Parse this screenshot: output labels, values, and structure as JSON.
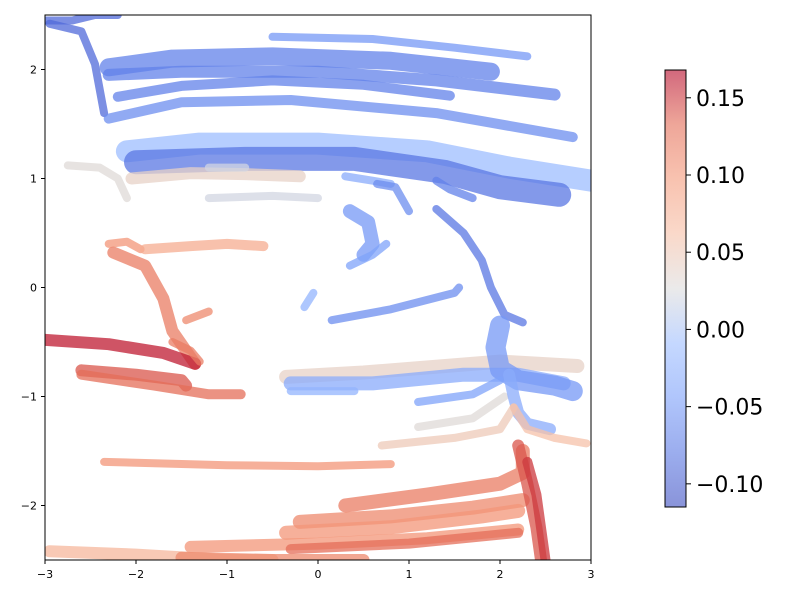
{
  "chart_data": {
    "type": "scatter",
    "title": "",
    "xlabel": "",
    "ylabel": "",
    "xlim": [
      -3,
      3
    ],
    "ylim": [
      -2.5,
      2.5
    ],
    "x_ticks": [
      -3,
      -2,
      -1,
      0,
      1,
      2,
      3
    ],
    "y_ticks": [
      -2,
      -1,
      0,
      1,
      2
    ],
    "x_tick_labels": [
      "−3",
      "−2",
      "−1",
      "0",
      "1",
      "2",
      "3"
    ],
    "y_tick_labels": [
      "−2",
      "−1",
      "0",
      "1",
      "2"
    ],
    "grid": false,
    "colormap": "coolwarm",
    "colorbar": {
      "vmin": -0.115,
      "vmax": 0.168,
      "ticks": [
        0.15,
        0.1,
        0.05,
        0.0,
        -0.05,
        -0.1
      ],
      "tick_labels": [
        "0.15",
        "0.10",
        "0.05",
        "0.00",
        "−0.05",
        "−0.10"
      ]
    },
    "trajectories": [
      {
        "id": "t01",
        "c": -0.09,
        "w": 8,
        "points": [
          [
            -3,
            2.45
          ],
          [
            -2.7,
            2.45
          ],
          [
            -2.45,
            2.5
          ],
          [
            -2.2,
            2.5
          ]
        ]
      },
      {
        "id": "t02",
        "c": -0.09,
        "w": 8,
        "points": [
          [
            -2.95,
            2.42
          ],
          [
            -2.6,
            2.35
          ],
          [
            -2.45,
            2.05
          ],
          [
            -2.35,
            1.6
          ]
        ]
      },
      {
        "id": "t03",
        "c": -0.05,
        "w": 8,
        "points": [
          [
            -0.5,
            2.3
          ],
          [
            0.6,
            2.28
          ],
          [
            1.5,
            2.2
          ],
          [
            2.3,
            2.12
          ]
        ]
      },
      {
        "id": "t04",
        "c": -0.07,
        "w": 18,
        "points": [
          [
            -2.3,
            2.02
          ],
          [
            -1.6,
            2.1
          ],
          [
            -0.5,
            2.12
          ],
          [
            0.8,
            2.08
          ],
          [
            1.9,
            1.98
          ]
        ]
      },
      {
        "id": "t05",
        "c": -0.07,
        "w": 12,
        "points": [
          [
            -2.3,
            1.95
          ],
          [
            -1.5,
            1.98
          ],
          [
            0,
            1.98
          ],
          [
            1.3,
            1.9
          ],
          [
            2.6,
            1.77
          ]
        ]
      },
      {
        "id": "t06",
        "c": -0.07,
        "w": 10,
        "points": [
          [
            -2.2,
            1.75
          ],
          [
            -1.5,
            1.85
          ],
          [
            -0.5,
            1.9
          ],
          [
            0.5,
            1.86
          ],
          [
            1.45,
            1.76
          ]
        ]
      },
      {
        "id": "t07",
        "c": -0.06,
        "w": 10,
        "points": [
          [
            -2.3,
            1.55
          ],
          [
            -1.5,
            1.7
          ],
          [
            -0.3,
            1.72
          ],
          [
            1.3,
            1.6
          ],
          [
            2.8,
            1.38
          ]
        ]
      },
      {
        "id": "t08",
        "c": -0.01,
        "w": 22,
        "points": [
          [
            -2.1,
            1.25
          ],
          [
            -1.3,
            1.32
          ],
          [
            0,
            1.32
          ],
          [
            1.2,
            1.25
          ],
          [
            2.1,
            1.1
          ],
          [
            3,
            0.98
          ]
        ]
      },
      {
        "id": "t09",
        "c": -0.08,
        "w": 24,
        "points": [
          [
            -2.0,
            1.15
          ],
          [
            -0.8,
            1.18
          ],
          [
            0.4,
            1.18
          ],
          [
            1.4,
            1.06
          ],
          [
            2.0,
            0.92
          ],
          [
            2.65,
            0.85
          ]
        ]
      },
      {
        "id": "t10",
        "c": 0.03,
        "w": 8,
        "points": [
          [
            -2.75,
            1.12
          ],
          [
            -2.4,
            1.1
          ],
          [
            -2.2,
            1.0
          ],
          [
            -2.1,
            0.82
          ]
        ]
      },
      {
        "id": "t11",
        "c": 0.04,
        "w": 12,
        "points": [
          [
            -2.05,
            1.0
          ],
          [
            -1.4,
            1.05
          ],
          [
            -0.8,
            1.04
          ],
          [
            -0.2,
            1.02
          ]
        ]
      },
      {
        "id": "t12",
        "c": 0.02,
        "w": 8,
        "points": [
          [
            -1.2,
            1.1
          ],
          [
            -0.8,
            1.1
          ]
        ]
      },
      {
        "id": "t13",
        "c": 0.02,
        "w": 8,
        "points": [
          [
            -1.2,
            0.82
          ],
          [
            -0.5,
            0.84
          ],
          [
            0,
            0.82
          ]
        ]
      },
      {
        "id": "t14",
        "c": -0.03,
        "w": 8,
        "points": [
          [
            0.3,
            1.02
          ],
          [
            0.6,
            0.98
          ],
          [
            0.8,
            0.95
          ]
        ]
      },
      {
        "id": "t15",
        "c": -0.06,
        "w": 8,
        "points": [
          [
            0.65,
            0.95
          ],
          [
            0.85,
            0.92
          ],
          [
            1.0,
            0.7
          ]
        ]
      },
      {
        "id": "t16",
        "c": -0.07,
        "w": 8,
        "points": [
          [
            1.3,
            0.98
          ],
          [
            1.45,
            0.9
          ],
          [
            1.7,
            0.82
          ]
        ]
      },
      {
        "id": "t17",
        "c": -0.08,
        "w": 8,
        "points": [
          [
            1.3,
            0.72
          ],
          [
            1.6,
            0.5
          ],
          [
            1.8,
            0.25
          ],
          [
            1.9,
            0.0
          ],
          [
            2.05,
            -0.25
          ],
          [
            2.25,
            -0.32
          ]
        ]
      },
      {
        "id": "t18",
        "c": -0.05,
        "w": 14,
        "points": [
          [
            0.35,
            0.7
          ],
          [
            0.55,
            0.6
          ],
          [
            0.6,
            0.4
          ],
          [
            0.5,
            0.3
          ]
        ]
      },
      {
        "id": "t19",
        "c": -0.04,
        "w": 8,
        "points": [
          [
            0.35,
            0.2
          ],
          [
            0.6,
            0.3
          ],
          [
            0.75,
            0.4
          ]
        ]
      },
      {
        "id": "t20",
        "c": -0.02,
        "w": 8,
        "points": [
          [
            -0.15,
            -0.18
          ],
          [
            -0.05,
            -0.05
          ]
        ]
      },
      {
        "id": "t21",
        "c": -0.06,
        "w": 8,
        "points": [
          [
            0.15,
            -0.3
          ],
          [
            0.8,
            -0.2
          ],
          [
            1.5,
            -0.05
          ],
          [
            1.55,
            -0.0
          ]
        ]
      },
      {
        "id": "t22",
        "c": 0.1,
        "w": 8,
        "points": [
          [
            -2.3,
            0.4
          ],
          [
            -2.1,
            0.42
          ],
          [
            -1.95,
            0.35
          ]
        ]
      },
      {
        "id": "t23",
        "c": 0.08,
        "w": 10,
        "points": [
          [
            -1.9,
            0.35
          ],
          [
            -1.4,
            0.38
          ],
          [
            -1.0,
            0.4
          ],
          [
            -0.6,
            0.38
          ]
        ]
      },
      {
        "id": "t24",
        "c": 0.12,
        "w": 12,
        "points": [
          [
            -2.25,
            0.32
          ],
          [
            -1.9,
            0.2
          ],
          [
            -1.7,
            -0.1
          ],
          [
            -1.6,
            -0.4
          ],
          [
            -1.35,
            -0.7
          ]
        ]
      },
      {
        "id": "t25",
        "c": 0.11,
        "w": 8,
        "points": [
          [
            -1.45,
            -0.3
          ],
          [
            -1.2,
            -0.22
          ]
        ]
      },
      {
        "id": "t26",
        "c": 0.16,
        "w": 12,
        "points": [
          [
            -3,
            -0.48
          ],
          [
            -2.3,
            -0.52
          ],
          [
            -1.7,
            -0.6
          ],
          [
            -1.35,
            -0.7
          ]
        ]
      },
      {
        "id": "t27",
        "c": 0.12,
        "w": 8,
        "points": [
          [
            -1.6,
            -0.5
          ],
          [
            -1.4,
            -0.58
          ],
          [
            -1.3,
            -0.68
          ]
        ]
      },
      {
        "id": "t28",
        "c": 0.14,
        "w": 12,
        "points": [
          [
            -2.6,
            -0.76
          ],
          [
            -2.0,
            -0.8
          ],
          [
            -1.5,
            -0.85
          ],
          [
            -1.45,
            -0.9
          ]
        ]
      },
      {
        "id": "t29",
        "c": 0.13,
        "w": 10,
        "points": [
          [
            -2.6,
            -0.8
          ],
          [
            -1.8,
            -0.9
          ],
          [
            -1.2,
            -0.98
          ],
          [
            -0.85,
            -0.98
          ]
        ]
      },
      {
        "id": "t30",
        "c": 0.04,
        "w": 14,
        "points": [
          [
            -0.35,
            -0.82
          ],
          [
            0.5,
            -0.78
          ],
          [
            1.4,
            -0.72
          ],
          [
            2.0,
            -0.68
          ],
          [
            2.85,
            -0.72
          ]
        ]
      },
      {
        "id": "t31",
        "c": -0.03,
        "w": 14,
        "points": [
          [
            -0.3,
            -0.88
          ],
          [
            0.6,
            -0.88
          ],
          [
            1.6,
            -0.8
          ],
          [
            2.2,
            -0.8
          ],
          [
            2.7,
            -0.88
          ]
        ]
      },
      {
        "id": "t32",
        "c": -0.02,
        "w": 8,
        "points": [
          [
            -0.3,
            -0.95
          ],
          [
            0.4,
            -0.95
          ]
        ]
      },
      {
        "id": "t33",
        "c": -0.05,
        "w": 20,
        "points": [
          [
            2.0,
            -0.35
          ],
          [
            1.95,
            -0.55
          ],
          [
            2.0,
            -0.75
          ],
          [
            2.2,
            -0.85
          ],
          [
            2.6,
            -0.9
          ],
          [
            2.8,
            -0.95
          ]
        ]
      },
      {
        "id": "t34",
        "c": -0.04,
        "w": 8,
        "points": [
          [
            1.1,
            -1.05
          ],
          [
            1.7,
            -0.98
          ],
          [
            2.0,
            -0.85
          ]
        ]
      },
      {
        "id": "t35",
        "c": 0.03,
        "w": 8,
        "points": [
          [
            1.1,
            -1.28
          ],
          [
            1.7,
            -1.2
          ],
          [
            2.05,
            -1.0
          ]
        ]
      },
      {
        "id": "t36",
        "c": -0.03,
        "w": 12,
        "points": [
          [
            2.1,
            -0.8
          ],
          [
            2.15,
            -1.0
          ],
          [
            2.2,
            -1.15
          ],
          [
            2.3,
            -1.25
          ],
          [
            2.55,
            -1.3
          ]
        ]
      },
      {
        "id": "t37",
        "c": 0.05,
        "w": 8,
        "points": [
          [
            0.7,
            -1.45
          ],
          [
            1.5,
            -1.38
          ],
          [
            2.0,
            -1.3
          ],
          [
            2.15,
            -1.1
          ]
        ]
      },
      {
        "id": "t38",
        "c": 0.06,
        "w": 8,
        "points": [
          [
            2.15,
            -1.1
          ],
          [
            2.3,
            -1.3
          ],
          [
            2.6,
            -1.38
          ],
          [
            2.95,
            -1.43
          ]
        ]
      },
      {
        "id": "t39",
        "c": 0.1,
        "w": 8,
        "points": [
          [
            -2.35,
            -1.6
          ],
          [
            -1.0,
            -1.63
          ],
          [
            0,
            -1.64
          ],
          [
            0.8,
            -1.62
          ]
        ]
      },
      {
        "id": "t40",
        "c": 0.12,
        "w": 14,
        "points": [
          [
            0.3,
            -2.0
          ],
          [
            1.2,
            -1.9
          ],
          [
            2.0,
            -1.8
          ],
          [
            2.25,
            -1.7
          ],
          [
            2.25,
            -1.5
          ]
        ]
      },
      {
        "id": "t41",
        "c": 0.11,
        "w": 14,
        "points": [
          [
            -0.2,
            -2.15
          ],
          [
            0.8,
            -2.1
          ],
          [
            1.7,
            -2.02
          ],
          [
            2.25,
            -1.95
          ]
        ]
      },
      {
        "id": "t42",
        "c": 0.1,
        "w": 14,
        "points": [
          [
            -0.35,
            -2.25
          ],
          [
            0.8,
            -2.2
          ],
          [
            1.8,
            -2.1
          ],
          [
            2.2,
            -2.05
          ]
        ]
      },
      {
        "id": "t43",
        "c": 0.1,
        "w": 12,
        "points": [
          [
            -1.4,
            -2.38
          ],
          [
            0,
            -2.35
          ],
          [
            1.2,
            -2.3
          ],
          [
            2.2,
            -2.22
          ]
        ]
      },
      {
        "id": "t44",
        "c": 0.13,
        "w": 10,
        "points": [
          [
            -0.3,
            -2.4
          ],
          [
            1.0,
            -2.35
          ],
          [
            2.2,
            -2.25
          ]
        ]
      },
      {
        "id": "t45",
        "c": 0.14,
        "w": 12,
        "points": [
          [
            2.2,
            -1.45
          ],
          [
            2.3,
            -1.8
          ],
          [
            2.4,
            -2.2
          ],
          [
            2.45,
            -2.5
          ]
        ]
      },
      {
        "id": "t46",
        "c": 0.15,
        "w": 10,
        "points": [
          [
            2.3,
            -1.6
          ],
          [
            2.4,
            -1.9
          ],
          [
            2.5,
            -2.5
          ]
        ]
      },
      {
        "id": "t47",
        "c": 0.07,
        "w": 12,
        "points": [
          [
            -2.95,
            -2.42
          ],
          [
            -2.0,
            -2.45
          ],
          [
            -1.0,
            -2.5
          ],
          [
            -0.5,
            -2.5
          ]
        ]
      },
      {
        "id": "t48",
        "c": 0.11,
        "w": 12,
        "points": [
          [
            -1.5,
            -2.48
          ],
          [
            -0.5,
            -2.5
          ],
          [
            0.5,
            -2.5
          ]
        ]
      }
    ]
  }
}
